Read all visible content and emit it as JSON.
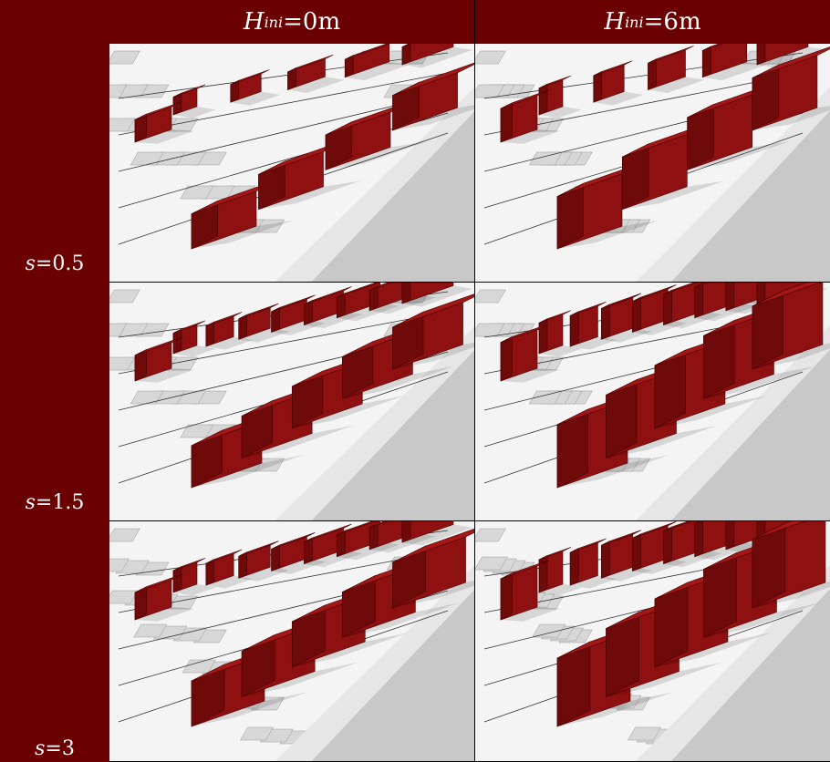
{
  "header": {
    "col_left": {
      "var": "H",
      "sub": "ini",
      "eq": " = ",
      "val": "0m"
    },
    "col_right": {
      "var": "H",
      "sub": "ini",
      "eq": " = ",
      "val": "6m"
    }
  },
  "rows": [
    {
      "label_var": "s",
      "label_eq": " = ",
      "label_val": "0.5"
    },
    {
      "label_var": "s",
      "label_eq": " = ",
      "label_val": "1.5"
    },
    {
      "label_var": "s",
      "label_eq": " = ",
      "label_val": "3"
    }
  ],
  "colors": {
    "header_bg": "#6b0000",
    "building": "#8e1010",
    "building_top": "#a51616",
    "building_side": "#6e0a0a",
    "road": "#c8c8c8"
  }
}
